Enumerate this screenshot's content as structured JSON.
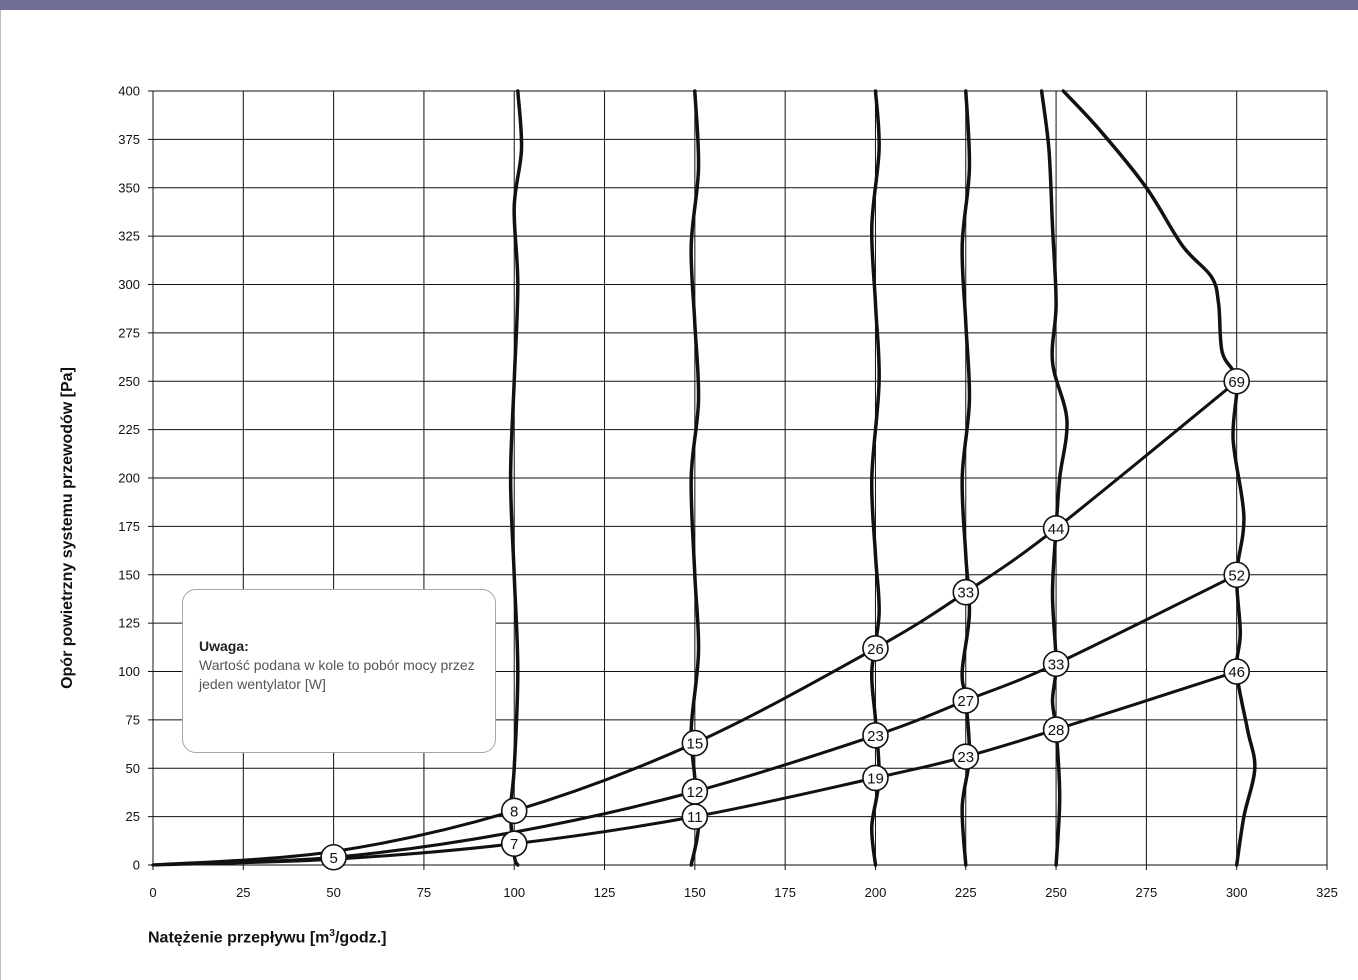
{
  "chart_data": {
    "type": "line",
    "xlabel": "Natężenie przepływu [m³/godz.]",
    "ylabel": "Opór powietrzny systemu przewodów [Pa]",
    "xlim": [
      0,
      325
    ],
    "ylim": [
      0,
      400
    ],
    "x_ticks": [
      "0",
      "25",
      "50",
      "75",
      "100",
      "125",
      "150",
      "175",
      "200",
      "225",
      "250",
      "275",
      "300",
      "325"
    ],
    "y_ticks": [
      "0",
      "25",
      "50",
      "75",
      "100",
      "125",
      "150",
      "175",
      "200",
      "225",
      "250",
      "275",
      "300",
      "325",
      "350",
      "375",
      "400"
    ],
    "grid": true,
    "system_curves": [
      {
        "points": [
          [
            0,
            0
          ],
          [
            50,
            7
          ],
          [
            100,
            28
          ],
          [
            150,
            63
          ],
          [
            200,
            112
          ],
          [
            225,
            141
          ],
          [
            250,
            174
          ],
          [
            300,
            250
          ]
        ]
      },
      {
        "points": [
          [
            0,
            0
          ],
          [
            50,
            4
          ],
          [
            100,
            17
          ],
          [
            150,
            38
          ],
          [
            200,
            67
          ],
          [
            225,
            85
          ],
          [
            250,
            104
          ],
          [
            300,
            150
          ]
        ]
      },
      {
        "points": [
          [
            0,
            0
          ],
          [
            50,
            3
          ],
          [
            100,
            11
          ],
          [
            150,
            25
          ],
          [
            200,
            45
          ],
          [
            225,
            56
          ],
          [
            250,
            70
          ],
          [
            300,
            100
          ]
        ]
      }
    ],
    "fan_curves": [
      {
        "points": [
          [
            101,
            400
          ],
          [
            102,
            370
          ],
          [
            100,
            340
          ],
          [
            101,
            300
          ],
          [
            100,
            250
          ],
          [
            99,
            200
          ],
          [
            100,
            150
          ],
          [
            101,
            100
          ],
          [
            100,
            50
          ],
          [
            99,
            28
          ],
          [
            100,
            5
          ],
          [
            101,
            0
          ]
        ]
      },
      {
        "points": [
          [
            150,
            400
          ],
          [
            151,
            360
          ],
          [
            149,
            320
          ],
          [
            150,
            280
          ],
          [
            151,
            240
          ],
          [
            149,
            200
          ],
          [
            150,
            150
          ],
          [
            151,
            110
          ],
          [
            149,
            70
          ],
          [
            150,
            45
          ],
          [
            151,
            20
          ],
          [
            149,
            0
          ]
        ]
      },
      {
        "points": [
          [
            200,
            400
          ],
          [
            201,
            370
          ],
          [
            199,
            330
          ],
          [
            200,
            290
          ],
          [
            201,
            250
          ],
          [
            199,
            200
          ],
          [
            200,
            160
          ],
          [
            201,
            130
          ],
          [
            199,
            100
          ],
          [
            200,
            75
          ],
          [
            201,
            45
          ],
          [
            199,
            20
          ],
          [
            200,
            0
          ]
        ]
      },
      {
        "points": [
          [
            225,
            400
          ],
          [
            226,
            360
          ],
          [
            224,
            320
          ],
          [
            225,
            280
          ],
          [
            226,
            240
          ],
          [
            224,
            200
          ],
          [
            225,
            160
          ],
          [
            226,
            130
          ],
          [
            224,
            100
          ],
          [
            225,
            85
          ],
          [
            226,
            56
          ],
          [
            224,
            30
          ],
          [
            225,
            0
          ]
        ]
      },
      {
        "points": [
          [
            246,
            400
          ],
          [
            248,
            370
          ],
          [
            249,
            330
          ],
          [
            250,
            290
          ],
          [
            249,
            260
          ],
          [
            253,
            230
          ],
          [
            251,
            200
          ],
          [
            250,
            174
          ],
          [
            249,
            140
          ],
          [
            250,
            104
          ],
          [
            249,
            85
          ],
          [
            250,
            70
          ],
          [
            251,
            35
          ],
          [
            250,
            0
          ]
        ]
      },
      {
        "points": [
          [
            252,
            400
          ],
          [
            262,
            380
          ],
          [
            275,
            350
          ],
          [
            285,
            320
          ],
          [
            293,
            304
          ],
          [
            295,
            290
          ],
          [
            296,
            265
          ],
          [
            300,
            250
          ],
          [
            299,
            220
          ],
          [
            302,
            180
          ],
          [
            300,
            150
          ],
          [
            301,
            120
          ],
          [
            300,
            100
          ],
          [
            303,
            70
          ],
          [
            305,
            50
          ],
          [
            302,
            25
          ],
          [
            300,
            0
          ]
        ]
      }
    ],
    "power_labels": [
      {
        "x": 50,
        "y": 4,
        "label": "5"
      },
      {
        "x": 100,
        "y": 11,
        "label": "7"
      },
      {
        "x": 100,
        "y": 28,
        "label": "8"
      },
      {
        "x": 150,
        "y": 25,
        "label": "11"
      },
      {
        "x": 150,
        "y": 38,
        "label": "12"
      },
      {
        "x": 150,
        "y": 63,
        "label": "15"
      },
      {
        "x": 200,
        "y": 45,
        "label": "19"
      },
      {
        "x": 200,
        "y": 67,
        "label": "23"
      },
      {
        "x": 200,
        "y": 112,
        "label": "26"
      },
      {
        "x": 225,
        "y": 56,
        "label": "23"
      },
      {
        "x": 225,
        "y": 85,
        "label": "27"
      },
      {
        "x": 225,
        "y": 141,
        "label": "33"
      },
      {
        "x": 250,
        "y": 70,
        "label": "28"
      },
      {
        "x": 250,
        "y": 104,
        "label": "33"
      },
      {
        "x": 250,
        "y": 174,
        "label": "44"
      },
      {
        "x": 300,
        "y": 100,
        "label": "46"
      },
      {
        "x": 300,
        "y": 150,
        "label": "52"
      },
      {
        "x": 300,
        "y": 250,
        "label": "69"
      }
    ],
    "note": {
      "title": "Uwaga:",
      "text": "Wartość podana w kole to pobór mocy przez jeden wentylator [W]"
    }
  },
  "colors": {
    "header_bar": "#6f6c95",
    "lines": "#111111",
    "grid": "#111111"
  }
}
